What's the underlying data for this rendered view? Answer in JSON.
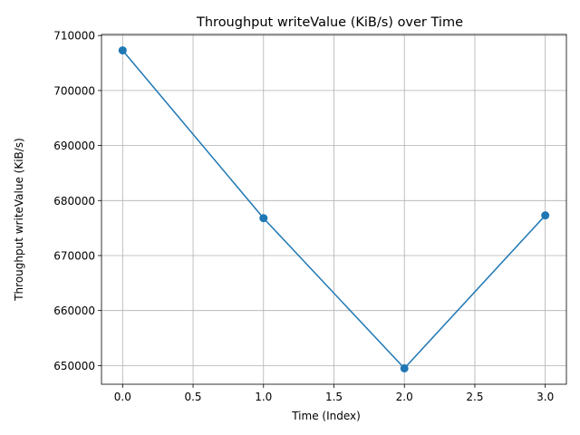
{
  "chart_data": {
    "type": "line",
    "title": "Throughput writeValue (KiB/s) over Time",
    "xlabel": "Time (Index)",
    "ylabel": "Throughput writeValue (KiB/s)",
    "x": [
      0,
      1,
      2,
      3
    ],
    "series": [
      {
        "values": [
          707300,
          676800,
          649500,
          677300
        ],
        "color": "#1f77b4",
        "marker": "circle"
      }
    ],
    "xlim": [
      -0.15,
      3.15
    ],
    "ylim": [
      646600,
      710200
    ],
    "xticks": [
      0.0,
      0.5,
      1.0,
      1.5,
      2.0,
      2.5,
      3.0
    ],
    "xtick_labels": [
      "0.0",
      "0.5",
      "1.0",
      "1.5",
      "2.0",
      "2.5",
      "3.0"
    ],
    "yticks": [
      650000,
      660000,
      670000,
      680000,
      690000,
      700000,
      710000
    ],
    "ytick_labels": [
      "650000",
      "660000",
      "670000",
      "680000",
      "690000",
      "700000",
      "710000"
    ],
    "grid": true,
    "legend": "none"
  }
}
